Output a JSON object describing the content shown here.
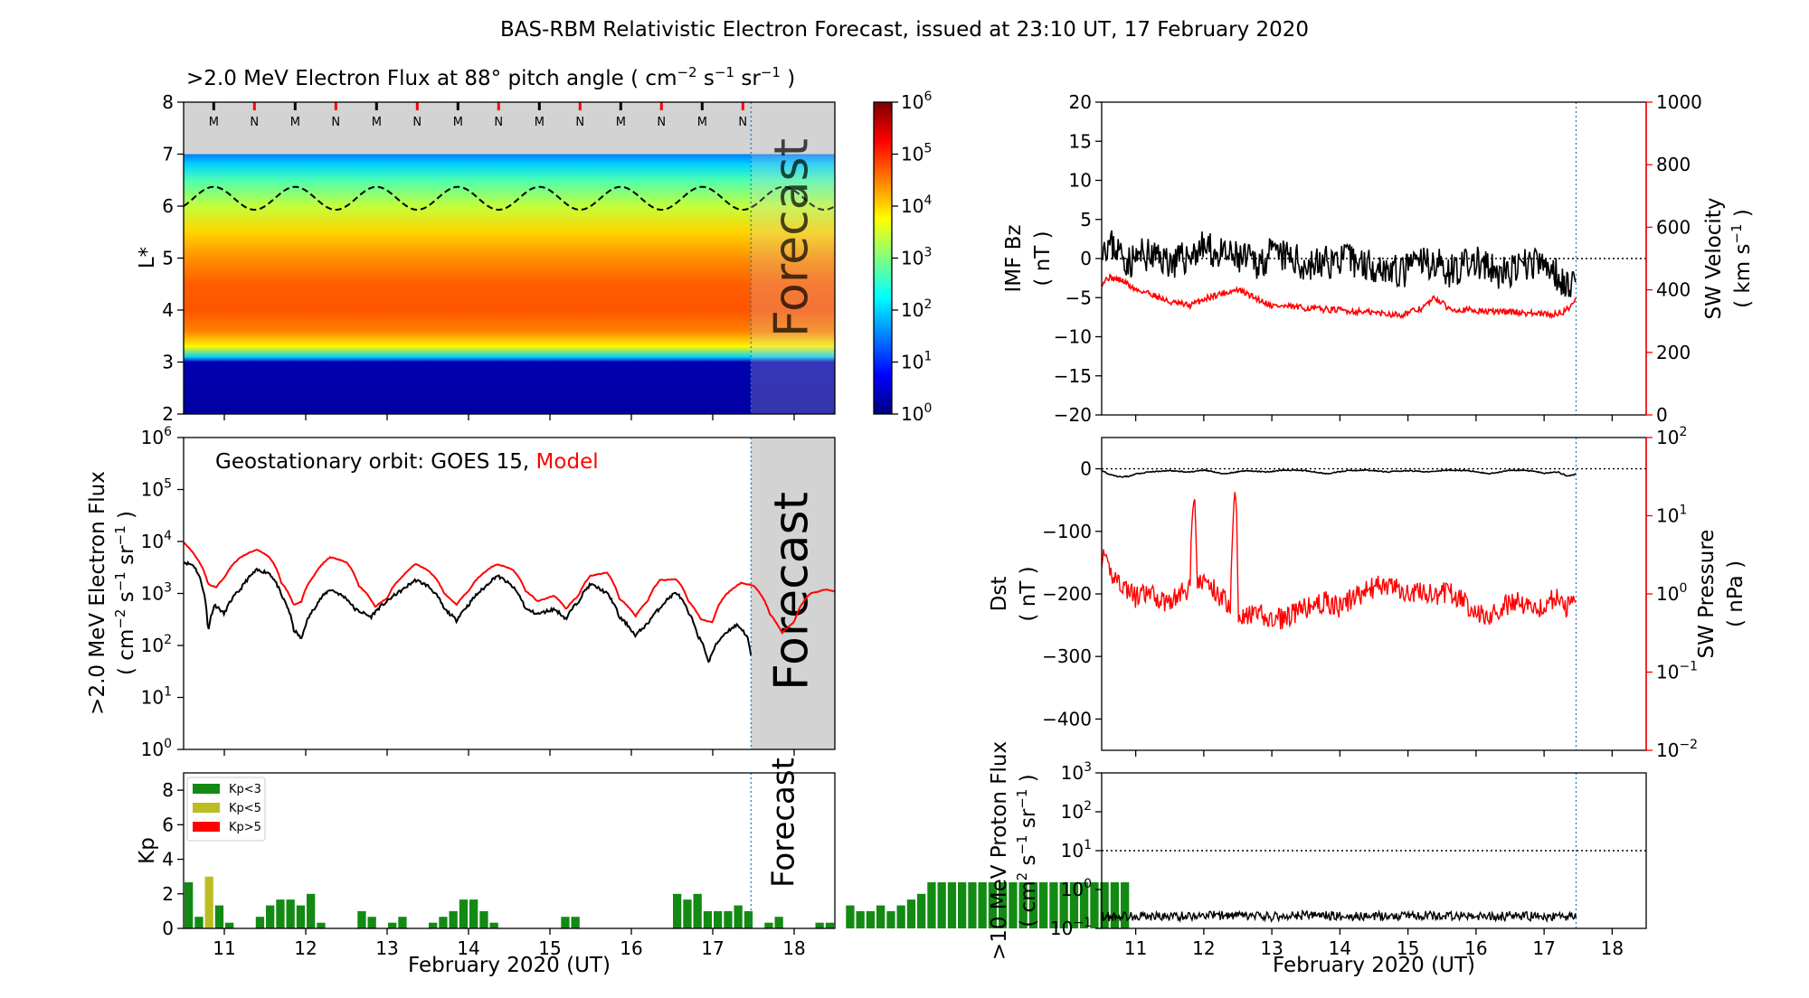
{
  "title": "BAS-RBM Relativistic Electron Forecast, issued at 23:10 UT, 17 February 2020",
  "colors": {
    "observed": "#000000",
    "model": "#ff0000",
    "forecast_shade": "#d3d3d3",
    "forecast_line": "#1f77b4",
    "kp_low": "#138a13",
    "kp_mid": "#bcbd22",
    "kp_high": "#ff0000"
  },
  "xaxis": {
    "label": "February 2020 (UT)",
    "range": [
      10.5,
      18.5
    ],
    "ticks": [
      "11",
      "12",
      "13",
      "14",
      "15",
      "16",
      "17",
      "18"
    ]
  },
  "forecast": {
    "label": "Forecast",
    "start_day": 17.47
  },
  "chart_data": [
    {
      "id": "lstar_flux_map",
      "type": "heatmap",
      "title": ">2.0 MeV Electron Flux at 88° pitch angle",
      "ylabel": "L*",
      "ylim": [
        2,
        8
      ],
      "yticks": [
        "2",
        "3",
        "4",
        "5",
        "6",
        "7",
        "8"
      ],
      "colorbar": {
        "scale": "log",
        "range": [
          1,
          1000000
        ],
        "tick_base": "10",
        "tick_exponents": [
          "0",
          "1",
          "2",
          "3",
          "4",
          "5",
          "6"
        ]
      },
      "profile": {
        "L": [
          2.0,
          3.0,
          3.1,
          3.3,
          3.6,
          4.0,
          4.5,
          5.0,
          5.5,
          6.0,
          6.5,
          6.8,
          7.0
        ],
        "log_flux": [
          0.2,
          0.3,
          2.0,
          3.8,
          4.5,
          4.75,
          4.7,
          4.4,
          4.0,
          3.4,
          2.7,
          2.0,
          1.5
        ]
      },
      "outer_boundary_L": 7.0,
      "orbit_curve": {
        "mean_L": 6.15,
        "amplitude": 0.22,
        "period_days": 1.0
      },
      "orbit_markers": {
        "day": [
          10.87,
          11.37,
          11.87,
          12.37,
          12.87,
          13.37,
          13.87,
          14.37,
          14.87,
          15.37,
          15.87,
          16.37,
          16.87,
          17.37
        ],
        "label": [
          "M",
          "N",
          "M",
          "N",
          "M",
          "N",
          "M",
          "N",
          "M",
          "N",
          "M",
          "N",
          "M",
          "N"
        ]
      }
    },
    {
      "id": "geo_flux",
      "type": "line",
      "ylabel": ">2.0 MeV Electron Flux",
      "yscale": "log",
      "ylim": [
        1,
        1000000
      ],
      "tick_base": "10",
      "yticks_exponents": [
        "0",
        "1",
        "2",
        "3",
        "4",
        "5",
        "6"
      ],
      "legend_prefix": "Geostationary orbit:",
      "series": [
        {
          "name": "GOES 15",
          "x": [
            10.5,
            10.62,
            10.75,
            10.8,
            10.88,
            11.0,
            11.2,
            11.4,
            11.55,
            11.7,
            11.85,
            11.95,
            12.1,
            12.3,
            12.5,
            12.6,
            12.8,
            13.0,
            13.2,
            13.35,
            13.5,
            13.7,
            13.85,
            14.0,
            14.2,
            14.35,
            14.55,
            14.7,
            14.85,
            15.05,
            15.2,
            15.35,
            15.5,
            15.7,
            15.85,
            16.05,
            16.2,
            16.35,
            16.55,
            16.7,
            16.82,
            16.95,
            17.15,
            17.3,
            17.42,
            17.47
          ],
          "y": [
            4000,
            3500,
            1000,
            170,
            600,
            400,
            1200,
            2800,
            2500,
            900,
            200,
            130,
            500,
            1200,
            800,
            500,
            350,
            700,
            1200,
            1800,
            1400,
            500,
            300,
            600,
            1300,
            2200,
            1300,
            500,
            400,
            500,
            320,
            700,
            1500,
            1000,
            350,
            150,
            260,
            520,
            1050,
            420,
            150,
            45,
            170,
            250,
            150,
            60
          ]
        },
        {
          "name": "Model",
          "x": [
            10.5,
            10.65,
            10.8,
            10.9,
            11.0,
            11.2,
            11.4,
            11.55,
            11.7,
            11.85,
            11.95,
            12.1,
            12.3,
            12.5,
            12.65,
            12.85,
            13.0,
            13.2,
            13.35,
            13.5,
            13.7,
            13.85,
            14.0,
            14.2,
            14.35,
            14.55,
            14.7,
            14.85,
            15.05,
            15.2,
            15.35,
            15.5,
            15.7,
            15.85,
            16.05,
            16.2,
            16.35,
            16.55,
            16.7,
            16.85,
            17.0,
            17.15,
            17.35,
            17.5,
            17.7,
            17.85,
            18.0,
            18.2,
            18.4,
            18.5
          ],
          "y": [
            9500,
            5000,
            1500,
            1300,
            2000,
            5000,
            7000,
            5000,
            1600,
            600,
            700,
            2200,
            5000,
            4000,
            1400,
            550,
            800,
            2200,
            3700,
            2800,
            1000,
            600,
            1100,
            2600,
            3700,
            2800,
            1100,
            700,
            900,
            500,
            900,
            2200,
            2500,
            800,
            360,
            700,
            1800,
            1900,
            700,
            320,
            280,
            900,
            1600,
            1400,
            400,
            170,
            280,
            1000,
            1200,
            1100
          ]
        }
      ]
    },
    {
      "id": "kp_index",
      "type": "bar",
      "ylabel": "Kp",
      "ylim": [
        0,
        9
      ],
      "yticks": [
        "0",
        "2",
        "4",
        "6",
        "8"
      ],
      "legend": [
        "Kp<3",
        "Kp<5",
        "Kp>5"
      ],
      "bar_width_days": 0.125,
      "start_day": 10.5,
      "values": [
        2.67,
        0.67,
        3.0,
        1.33,
        0.33,
        0.0,
        0.0,
        0.67,
        1.33,
        1.67,
        1.67,
        1.33,
        2.0,
        0.33,
        0.0,
        0.0,
        0.0,
        1.0,
        0.67,
        0.0,
        0.33,
        0.67,
        0.0,
        0.0,
        0.33,
        0.67,
        1.0,
        1.67,
        1.67,
        1.0,
        0.33,
        0.0,
        0.0,
        0.0,
        0.0,
        0.0,
        0.0,
        0.67,
        0.67,
        0.0,
        0.0,
        0.0,
        0.0,
        0.0,
        0.0,
        0.0,
        0.0,
        0.0,
        2.0,
        1.67,
        2.0,
        1.0,
        1.0,
        1.0,
        1.33,
        1.0,
        0.0,
        0.33,
        0.67,
        0.0,
        0.0,
        0.0,
        0.33,
        0.33,
        0.0,
        1.33,
        1.0,
        1.0,
        1.33,
        1.0,
        1.33,
        1.67,
        2.0,
        2.67,
        2.67,
        2.67,
        2.67,
        2.67,
        2.67,
        2.67,
        2.67,
        2.67,
        2.67,
        2.67,
        2.67,
        2.67,
        2.67,
        2.67,
        2.67,
        2.67,
        2.67,
        2.67,
        2.67
      ]
    },
    {
      "id": "imf_sw_velocity",
      "type": "line",
      "left_axis": {
        "label": "IMF Bz",
        "unit": "( nT )",
        "ylim": [
          -20,
          20
        ],
        "yticks": [
          "−20",
          "−15",
          "−10",
          "−5",
          "0",
          "5",
          "10",
          "15",
          "20"
        ]
      },
      "right_axis": {
        "label": "SW Velocity",
        "ylim": [
          0,
          1000
        ],
        "yticks": [
          "0",
          "200",
          "400",
          "600",
          "800",
          "1000"
        ]
      },
      "series": [
        {
          "name": "IMF Bz",
          "x": [
            10.5,
            10.7,
            10.9,
            11.1,
            11.4,
            11.6,
            11.9,
            12.0,
            12.2,
            12.5,
            12.8,
            13.0,
            13.3,
            13.5,
            13.8,
            14.0,
            14.3,
            14.6,
            14.9,
            15.1,
            15.4,
            15.6,
            15.8,
            16.0,
            16.2,
            16.4,
            16.6,
            16.8,
            17.0,
            17.2,
            17.35,
            17.47
          ],
          "y": [
            2,
            1.5,
            -0.5,
            0.5,
            0.0,
            -0.5,
            1.0,
            1.5,
            0.5,
            0.0,
            -0.5,
            0.5,
            0.0,
            -1.0,
            -0.5,
            0.0,
            -0.5,
            -1.0,
            -2.0,
            -0.5,
            -0.5,
            -1.5,
            -1.0,
            -0.5,
            -1.5,
            -2.0,
            -1.5,
            -0.5,
            -1.0,
            -2.0,
            -3.5,
            -1.5
          ]
        },
        {
          "name": "SW Velocity",
          "x": [
            10.5,
            10.6,
            10.8,
            11.0,
            11.2,
            11.5,
            11.8,
            12.0,
            12.2,
            12.5,
            12.8,
            13.0,
            13.3,
            13.6,
            14.0,
            14.3,
            14.6,
            14.9,
            15.2,
            15.4,
            15.6,
            15.9,
            16.2,
            16.5,
            16.8,
            17.1,
            17.3,
            17.47
          ],
          "y": [
            420,
            440,
            430,
            400,
            390,
            360,
            350,
            370,
            385,
            400,
            370,
            350,
            345,
            340,
            335,
            330,
            325,
            320,
            340,
            375,
            340,
            335,
            330,
            330,
            325,
            320,
            330,
            370
          ]
        }
      ]
    },
    {
      "id": "dst_sw_pressure",
      "type": "line",
      "left_axis": {
        "label": "Dst",
        "unit": "( nT )",
        "ylim": [
          -450,
          50
        ],
        "yticks": [
          "−400",
          "−300",
          "−200",
          "−100",
          "0"
        ]
      },
      "right_axis": {
        "label": "SW Pressure",
        "scale": "log",
        "ylim": [
          0.01,
          100
        ],
        "tick_base": "10",
        "tick_exponents": [
          "−2",
          "−1",
          "0",
          "1",
          "2"
        ]
      },
      "series": [
        {
          "name": "Dst",
          "x": [
            10.5,
            10.6,
            10.75,
            10.9,
            11.0,
            11.2,
            11.5,
            11.8,
            12.0,
            12.3,
            12.6,
            12.9,
            13.2,
            13.5,
            13.8,
            14.1,
            14.4,
            14.7,
            15.0,
            15.3,
            15.6,
            15.9,
            16.2,
            16.5,
            16.8,
            17.0,
            17.2,
            17.35,
            17.47
          ],
          "y": [
            -3,
            -8,
            -13,
            -12,
            -8,
            -5,
            -3,
            -5,
            -2,
            -8,
            -3,
            -5,
            -2,
            -3,
            -8,
            -3,
            -2,
            -5,
            -3,
            -5,
            -2,
            -3,
            -8,
            -2,
            -3,
            -7,
            -5,
            -12,
            -8
          ]
        },
        {
          "name": "SW Pressure",
          "x": [
            10.5,
            10.6,
            10.8,
            11.0,
            11.2,
            11.4,
            11.6,
            11.8,
            11.85,
            11.9,
            12.0,
            12.2,
            12.4,
            12.47,
            12.5,
            12.6,
            12.8,
            13.0,
            13.2,
            13.4,
            13.6,
            13.8,
            14.0,
            14.2,
            14.4,
            14.6,
            14.8,
            15.0,
            15.2,
            15.4,
            15.6,
            15.8,
            16.0,
            16.2,
            16.4,
            16.6,
            16.8,
            17.0,
            17.2,
            17.3,
            17.4,
            17.47
          ],
          "y": [
            3.0,
            2.0,
            1.3,
            0.9,
            1.0,
            0.8,
            0.9,
            1.2,
            20.0,
            1.2,
            1.5,
            1.0,
            0.7,
            20.0,
            0.6,
            0.5,
            0.55,
            0.45,
            0.5,
            0.6,
            0.7,
            0.8,
            0.65,
            0.9,
            1.1,
            1.3,
            1.2,
            1.0,
            1.1,
            0.9,
            1.1,
            0.8,
            0.6,
            0.5,
            0.7,
            0.8,
            0.7,
            0.65,
            1.0,
            0.6,
            0.8,
            1.0
          ]
        }
      ]
    },
    {
      "id": "proton_flux",
      "type": "line",
      "ylabel": ">10 MeV Proton Flux",
      "yscale": "log",
      "ylim": [
        0.1,
        1000
      ],
      "tick_base": "10",
      "yticks_exponents": [
        "−1",
        "0",
        "1",
        "2",
        "3"
      ],
      "threshold": 10,
      "series": [
        {
          "name": ">10 MeV Proton Flux",
          "x": [
            10.5,
            11.0,
            11.5,
            12.0,
            12.5,
            13.0,
            13.5,
            14.0,
            14.5,
            15.0,
            15.5,
            16.0,
            16.5,
            17.0,
            17.47
          ],
          "y": [
            0.2,
            0.21,
            0.2,
            0.22,
            0.21,
            0.2,
            0.22,
            0.21,
            0.2,
            0.22,
            0.21,
            0.2,
            0.21,
            0.2,
            0.2
          ]
        }
      ]
    }
  ]
}
